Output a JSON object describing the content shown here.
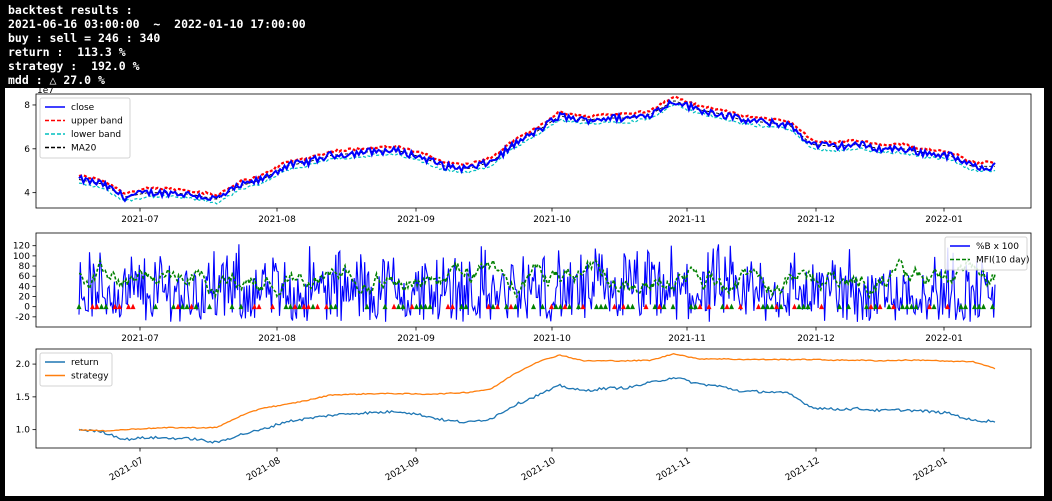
{
  "terminal": {
    "lines": [
      "backtest results :",
      "2021-06-16 03:00:00  ~  2022-01-10 17:00:00",
      "buy : sell = 246 : 340",
      "return :  113.3 %",
      "strategy :  192.0 %",
      "mdd : △ 27.0 %"
    ]
  },
  "chart_data": [
    {
      "type": "line",
      "x_axis": {
        "ticks": [
          "2021-07",
          "2021-08",
          "2021-09",
          "2021-10",
          "2021-11",
          "2021-12",
          "2022-01"
        ]
      },
      "y_axis": {
        "ticks": [
          4,
          6,
          8
        ],
        "offset_label": "1e7",
        "ylim": [
          3.3,
          8.5
        ]
      },
      "legend": {
        "position": "top-left"
      },
      "series": [
        {
          "name": "close",
          "color": "#0000ff",
          "style": "solid",
          "values": [
            4.6,
            4.4,
            3.8,
            4.0,
            4.0,
            3.9,
            3.7,
            4.3,
            4.6,
            5.2,
            5.4,
            5.7,
            5.8,
            5.9,
            5.9,
            5.6,
            5.2,
            5.1,
            5.4,
            6.2,
            6.8,
            7.5,
            7.3,
            7.4,
            7.4,
            7.6,
            8.2,
            7.8,
            7.6,
            7.3,
            7.2,
            7.1,
            6.2,
            6.1,
            6.2,
            6.0,
            6.0,
            5.8,
            5.7,
            5.2,
            5.2
          ]
        },
        {
          "name": "upper band",
          "color": "#ff0000",
          "style": "dashed"
        },
        {
          "name": "lower band",
          "color": "#00bfbf",
          "style": "dashed"
        },
        {
          "name": "MA20",
          "color": "#000000",
          "style": "dashed"
        }
      ]
    },
    {
      "type": "line",
      "x_axis": {
        "ticks": [
          "2021-07",
          "2021-08",
          "2021-09",
          "2021-10",
          "2021-11",
          "2021-12",
          "2022-01"
        ]
      },
      "y_axis": {
        "ticks": [
          -20,
          0,
          20,
          40,
          60,
          80,
          100,
          120
        ],
        "ylim": [
          -40,
          145
        ]
      },
      "legend": {
        "position": "top-right"
      },
      "series": [
        {
          "name": "%B x 100",
          "color": "#0000ff",
          "style": "solid"
        },
        {
          "name": "MFI(10 day)",
          "color": "#008000",
          "style": "dashed"
        }
      ],
      "markers": {
        "buy_color": "#008000",
        "sell_color": "#ff0000",
        "level": 0
      }
    },
    {
      "type": "line",
      "x_axis": {
        "ticks": [
          "2021-07",
          "2021-08",
          "2021-09",
          "2021-10",
          "2021-11",
          "2021-12",
          "2022-01"
        ],
        "rotated": true
      },
      "y_axis": {
        "ticks": [
          1.0,
          1.5,
          2.0
        ],
        "ylim": [
          0.72,
          2.23
        ]
      },
      "legend": {
        "position": "top-left"
      },
      "series": [
        {
          "name": "return",
          "color": "#1f77b4",
          "values": [
            1.0,
            0.97,
            0.85,
            0.88,
            0.87,
            0.86,
            0.8,
            0.92,
            1.0,
            1.12,
            1.17,
            1.22,
            1.25,
            1.26,
            1.28,
            1.22,
            1.14,
            1.11,
            1.17,
            1.37,
            1.52,
            1.67,
            1.59,
            1.63,
            1.64,
            1.72,
            1.8,
            1.7,
            1.66,
            1.58,
            1.58,
            1.55,
            1.34,
            1.31,
            1.32,
            1.29,
            1.3,
            1.28,
            1.25,
            1.14,
            1.13
          ]
        },
        {
          "name": "strategy",
          "color": "#ff7f0e",
          "values": [
            1.0,
            0.98,
            1.0,
            1.02,
            1.03,
            1.03,
            1.03,
            1.2,
            1.33,
            1.38,
            1.45,
            1.53,
            1.54,
            1.55,
            1.55,
            1.54,
            1.55,
            1.57,
            1.62,
            1.85,
            2.03,
            2.14,
            2.05,
            2.05,
            2.05,
            2.06,
            2.16,
            2.08,
            2.08,
            2.07,
            2.07,
            2.07,
            2.07,
            2.06,
            2.06,
            2.05,
            2.06,
            2.06,
            2.04,
            2.04,
            1.93
          ]
        }
      ]
    }
  ]
}
